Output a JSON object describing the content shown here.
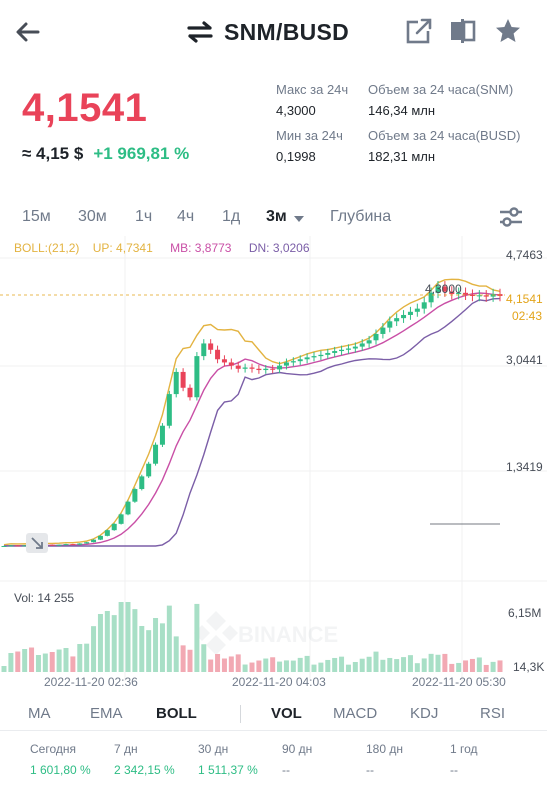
{
  "header": {
    "pair": "SNM/BUSD"
  },
  "price": {
    "last": "4,1541",
    "approx": "≈ 4,15 $",
    "change": "+1 969,81 %"
  },
  "stats": {
    "high_label": "Макс за 24ч",
    "high_value": "4,3000",
    "low_label": "Мин за 24ч",
    "low_value": "0,1998",
    "vol_base_label": "Объем за 24 часа(SNM)",
    "vol_base_value": "146,34 млн",
    "vol_quote_label": "Объем за 24 часа(BUSD)",
    "vol_quote_value": "182,31 млн"
  },
  "intervals": [
    "15м",
    "30м",
    "1ч",
    "4ч",
    "1д",
    "3м",
    "Глубина"
  ],
  "active_interval": "3м",
  "indicator": {
    "boll": "BOLL:(21,2)",
    "up": "UP: 4,7341",
    "mb": "MB: 3,8773",
    "dn": "DN: 3,0206"
  },
  "chart": {
    "y_labels": [
      "4,7463",
      "3,0441",
      "1,3419"
    ],
    "current_price_tag": "4,1541",
    "countdown_tag": "02:43",
    "high_tag": "4,3000",
    "vol_label": "Vol: 14 255",
    "vol_labels": [
      "6,15M",
      "14,3K"
    ],
    "time_labels": [
      "2022-11-20 02:36",
      "2022-11-20 04:03",
      "2022-11-20 05:30"
    ],
    "colors": {
      "up": "#2ebd85",
      "down": "#e94359",
      "boll_up": "#e3b341",
      "boll_mb": "#c94fa6",
      "boll_dn": "#7b5ea7"
    }
  },
  "chart_data": {
    "type": "candlestick",
    "title": "",
    "ylim": [
      0.2,
      4.75
    ],
    "candles_close": [
      0.2,
      0.21,
      0.2,
      0.21,
      0.2,
      0.21,
      0.22,
      0.21,
      0.22,
      0.23,
      0.22,
      0.24,
      0.26,
      0.3,
      0.36,
      0.45,
      0.55,
      0.7,
      0.9,
      1.1,
      1.3,
      1.5,
      1.8,
      2.1,
      2.6,
      2.95,
      2.7,
      2.55,
      3.2,
      3.4,
      3.3,
      3.15,
      3.1,
      3.05,
      3.0,
      3.02,
      3.0,
      2.98,
      3.0,
      2.99,
      3.05,
      3.1,
      3.12,
      3.15,
      3.18,
      3.2,
      3.22,
      3.25,
      3.28,
      3.3,
      3.32,
      3.35,
      3.4,
      3.45,
      3.55,
      3.65,
      3.75,
      3.8,
      3.85,
      3.9,
      3.95,
      4.05,
      4.2,
      4.3,
      4.22,
      4.18,
      4.2,
      4.17,
      4.15,
      4.16,
      4.14,
      4.18,
      4.15
    ],
    "current": 4.1541,
    "high": 4.3
  },
  "tabs": [
    "MA",
    "EMA",
    "BOLL",
    "VOL",
    "MACD",
    "KDJ",
    "RSI"
  ],
  "active_tabs": [
    "BOLL",
    "VOL"
  ],
  "performance": [
    {
      "label": "Сегодня",
      "value": "1 601,80 %"
    },
    {
      "label": "7 дн",
      "value": "2 342,15 %"
    },
    {
      "label": "30 дн",
      "value": "1 511,37 %"
    },
    {
      "label": "90 дн",
      "value": "--"
    },
    {
      "label": "180 дн",
      "value": "--"
    },
    {
      "label": "1 год",
      "value": "--"
    }
  ]
}
